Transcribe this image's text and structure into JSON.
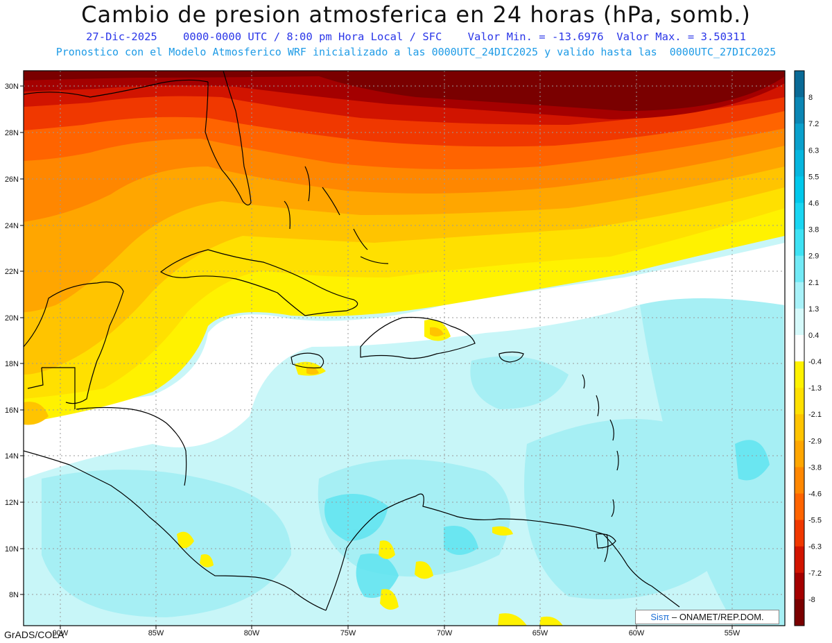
{
  "header": {
    "title": "Cambio de presion atmosferica en 24 horas (hPa, somb.)",
    "subtitle_run": "27-Dic-2025    0000-0000 UTC / 8:00 pm Hora Local / SFC    Valor Min. = -13.6976  Valor Max. = 3.50311",
    "subtitle_model": "Pronostico con el Modelo Atmosferico WRF inicializado a las 0000UTC_24DIC2025 y valido hasta las  0000UTC_27DIC2025"
  },
  "axes": {
    "lat_labels": [
      "30N",
      "28N",
      "26N",
      "24N",
      "22N",
      "20N",
      "18N",
      "16N",
      "14N",
      "12N",
      "10N",
      "8N"
    ],
    "lon_labels": [
      "90W",
      "85W",
      "80W",
      "75W",
      "70W",
      "65W",
      "60W",
      "55W"
    ]
  },
  "colorbar": {
    "labels": [
      "8",
      "7.2",
      "6.3",
      "5.5",
      "4.6",
      "3.8",
      "2.9",
      "2.1",
      "1.3",
      "0.4",
      "-0.4",
      "-1.3",
      "-2.1",
      "-2.9",
      "-3.8",
      "-4.6",
      "-5.5",
      "-6.3",
      "-7.2",
      "-8"
    ],
    "colors": [
      "#0a6a96",
      "#0b86b4",
      "#0aa0cc",
      "#06b6de",
      "#00c8eb",
      "#1ad6f2",
      "#3ee2f4",
      "#72eaf6",
      "#a8f2f9",
      "#d6fafb",
      "#ffffff",
      "#fff200",
      "#ffe000",
      "#ffc400",
      "#ffa600",
      "#ff8700",
      "#ff6400",
      "#f03800",
      "#d11400",
      "#a40000",
      "#7a0000"
    ]
  },
  "footer": {
    "credit": "GrADS/COLA",
    "logo_brand": "Sisπ",
    "logo_text": " – ONAMET/REP.DOM."
  }
}
